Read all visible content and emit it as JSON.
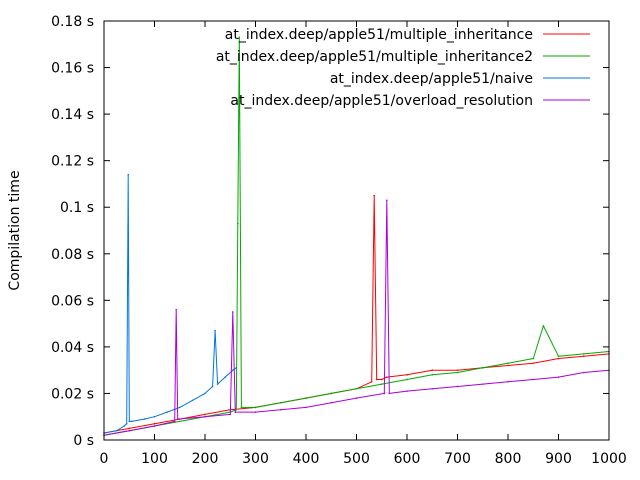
{
  "chart_data": {
    "type": "line",
    "title": "",
    "xlabel": "",
    "ylabel": "Compilation time",
    "xlim": [
      0,
      1000
    ],
    "ylim": [
      0,
      0.18
    ],
    "x_ticks": [
      0,
      100,
      200,
      300,
      400,
      500,
      600,
      700,
      800,
      900,
      1000
    ],
    "x_tick_labels": [
      "0",
      "100",
      "200",
      "300",
      "400",
      "500",
      "600",
      "700",
      "800",
      "900",
      "1000"
    ],
    "y_ticks": [
      0,
      0.02,
      0.04,
      0.06,
      0.08,
      0.1,
      0.12,
      0.14,
      0.16,
      0.18
    ],
    "y_tick_labels": [
      "0 s",
      "0.02 s",
      "0.04 s",
      "0.06 s",
      "0.08 s",
      "0.1 s",
      "0.12 s",
      "0.14 s",
      "0.16 s",
      "0.18 s"
    ],
    "grid": false,
    "legend_position": "top-right",
    "series": [
      {
        "name": "at_index.deep/apple51/multiple_inheritance",
        "color": "#ff0000",
        "x": [
          0,
          50,
          100,
          150,
          200,
          250,
          300,
          350,
          400,
          450,
          500,
          530,
          535,
          540,
          550,
          560,
          600,
          650,
          700,
          750,
          800,
          850,
          900,
          950,
          1000
        ],
        "y": [
          0.003,
          0.005,
          0.007,
          0.009,
          0.011,
          0.013,
          0.014,
          0.016,
          0.018,
          0.02,
          0.022,
          0.025,
          0.105,
          0.026,
          0.026,
          0.027,
          0.028,
          0.03,
          0.03,
          0.031,
          0.032,
          0.033,
          0.035,
          0.036,
          0.037
        ]
      },
      {
        "name": "at_index.deep/apple51/multiple_inheritance2",
        "color": "#00aa00",
        "x": [
          0,
          50,
          100,
          150,
          200,
          250,
          262,
          265,
          268,
          272,
          300,
          350,
          400,
          450,
          500,
          550,
          600,
          650,
          700,
          750,
          800,
          850,
          870,
          900,
          950,
          1000
        ],
        "y": [
          0.002,
          0.004,
          0.006,
          0.008,
          0.01,
          0.012,
          0.013,
          0.093,
          0.173,
          0.014,
          0.014,
          0.016,
          0.018,
          0.02,
          0.022,
          0.024,
          0.026,
          0.028,
          0.029,
          0.031,
          0.033,
          0.035,
          0.049,
          0.036,
          0.037,
          0.038
        ]
      },
      {
        "name": "at_index.deep/apple51/naive",
        "color": "#0077dd",
        "x": [
          0,
          25,
          40,
          45,
          48,
          50,
          55,
          80,
          100,
          125,
          150,
          175,
          200,
          215,
          220,
          225,
          240,
          255,
          262
        ],
        "y": [
          0.003,
          0.004,
          0.006,
          0.007,
          0.114,
          0.008,
          0.008,
          0.009,
          0.01,
          0.012,
          0.014,
          0.017,
          0.02,
          0.023,
          0.047,
          0.024,
          0.027,
          0.03,
          0.031
        ]
      },
      {
        "name": "at_index.deep/apple51/overload_resolution",
        "color": "#aa00dd",
        "x": [
          0,
          50,
          100,
          140,
          143,
          146,
          200,
          250,
          255,
          260,
          300,
          350,
          400,
          450,
          500,
          555,
          560,
          565,
          600,
          650,
          700,
          750,
          800,
          850,
          900,
          950,
          1000
        ],
        "y": [
          0.002,
          0.004,
          0.006,
          0.008,
          0.056,
          0.009,
          0.01,
          0.011,
          0.055,
          0.012,
          0.012,
          0.013,
          0.014,
          0.016,
          0.018,
          0.02,
          0.103,
          0.02,
          0.021,
          0.022,
          0.023,
          0.024,
          0.025,
          0.026,
          0.027,
          0.029,
          0.03
        ]
      }
    ]
  }
}
